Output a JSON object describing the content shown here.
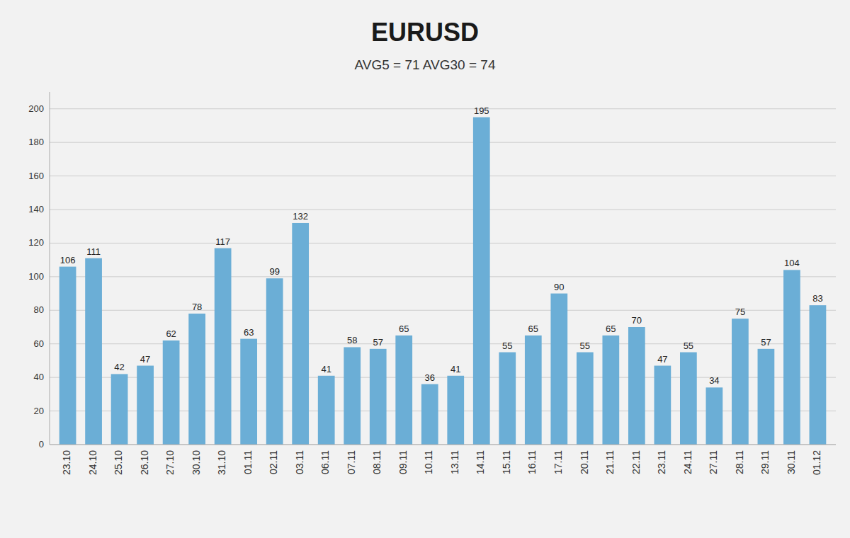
{
  "chart_data": {
    "type": "bar",
    "title": "EURUSD",
    "subtitle": "AVG5 = 71 AVG30 = 74",
    "categories": [
      "23.10",
      "24.10",
      "25.10",
      "26.10",
      "27.10",
      "30.10",
      "31.10",
      "01.11",
      "02.11",
      "03.11",
      "06.11",
      "07.11",
      "08.11",
      "09.11",
      "10.11",
      "13.11",
      "14.11",
      "15.11",
      "16.11",
      "17.11",
      "20.11",
      "21.11",
      "22.11",
      "23.11",
      "24.11",
      "27.11",
      "28.11",
      "29.11",
      "30.11",
      "01.12"
    ],
    "values": [
      106,
      111,
      42,
      47,
      62,
      78,
      117,
      63,
      99,
      132,
      41,
      58,
      57,
      65,
      36,
      41,
      195,
      55,
      65,
      90,
      55,
      65,
      70,
      47,
      55,
      34,
      75,
      57,
      104,
      83
    ],
    "color": "#6baed6",
    "ylim": [
      0,
      210
    ],
    "yticks": [
      0,
      20,
      40,
      60,
      80,
      100,
      120,
      140,
      160,
      180,
      200
    ],
    "grid": true,
    "data_labels": true
  }
}
